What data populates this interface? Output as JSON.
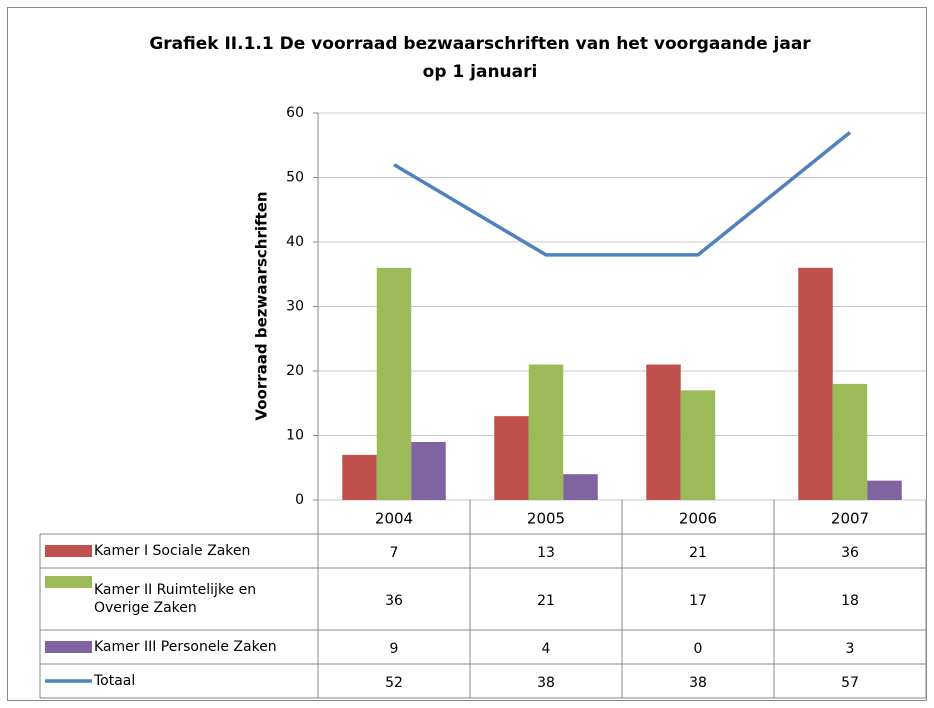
{
  "chart_data": {
    "type": "bar",
    "title": [
      "Grafiek II.1.1 De voorraad bezwaarschriften van het voorgaande jaar",
      "op 1 januari"
    ],
    "y_label": "Voorraad bezwaarschriften",
    "categories": [
      "2004",
      "2005",
      "2006",
      "2007"
    ],
    "series": [
      {
        "name": "Kamer I Sociale Zaken",
        "color": "#c0504d",
        "type": "bar",
        "values": [
          7,
          13,
          21,
          36
        ]
      },
      {
        "name": "Kamer II Ruimtelijke en Overige Zaken",
        "color": "#9bbb59",
        "type": "bar",
        "values": [
          36,
          21,
          17,
          18
        ]
      },
      {
        "name": "Kamer III Personele Zaken",
        "color": "#8064a2",
        "type": "bar",
        "values": [
          9,
          4,
          0,
          3
        ]
      },
      {
        "name": "Totaal",
        "color": "#4f81bd",
        "type": "line",
        "values": [
          52,
          38,
          38,
          57
        ]
      }
    ],
    "ylim": [
      0,
      60
    ],
    "yticks": [
      0,
      10,
      20,
      30,
      40,
      50,
      60
    ],
    "grid": true,
    "data_table": true
  }
}
